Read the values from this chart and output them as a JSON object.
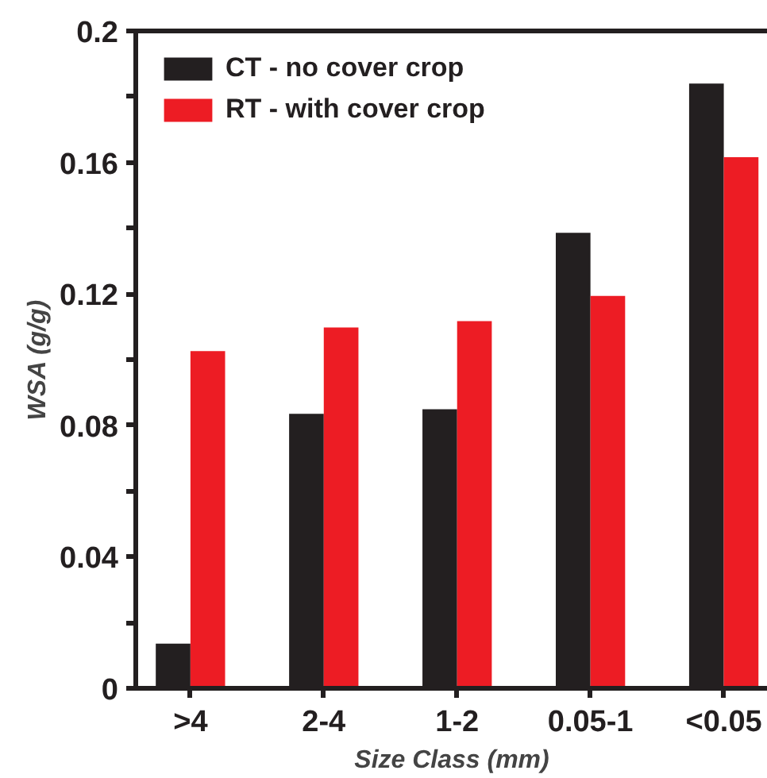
{
  "chart_data": {
    "type": "bar",
    "xlabel": "Size Class (mm)",
    "ylabel": "WSA (g/g)",
    "categories": [
      ">4",
      "2-4",
      "1-2",
      "0.05-1",
      "<0.05"
    ],
    "series": [
      {
        "name": "CT - no cover crop",
        "color": "#231f20",
        "values": [
          0.0136,
          0.0835,
          0.0849,
          0.1386,
          0.184
        ]
      },
      {
        "name": "RT - with cover crop",
        "color": "#ed1c24",
        "values": [
          0.1026,
          0.1098,
          0.1117,
          0.1194,
          0.1616
        ]
      }
    ],
    "ylim": [
      0,
      0.2
    ],
    "yticks": [
      0,
      {
        "value": 0.02,
        "label": null
      },
      0.04,
      {
        "value": 0.06,
        "label": null
      },
      0.08,
      {
        "value": 0.1,
        "label": null
      },
      0.12,
      {
        "value": 0.14,
        "label": null
      },
      0.16,
      {
        "value": 0.18,
        "label": null
      },
      0.2
    ],
    "grid": false,
    "legend": "top left"
  }
}
